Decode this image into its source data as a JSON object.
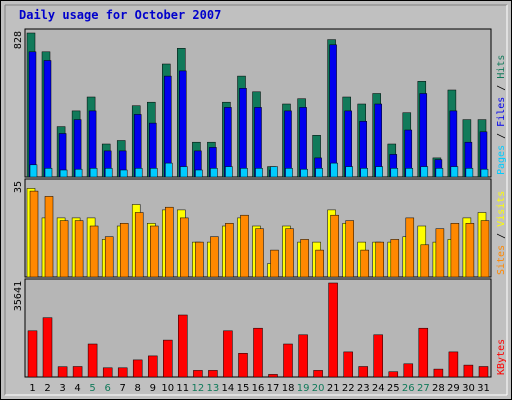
{
  "title": "Daily usage for October 2007",
  "colors": {
    "background": "#c0c0c0",
    "panel": "#b6b6b6",
    "hits": "#117a5a",
    "files": "#0000ee",
    "pages": "#00ccff",
    "visits": "#ffff00",
    "sites": "#ff8800",
    "kbytes": "#ff0000",
    "weekend_day": "#117a5a",
    "weekday": "#000000"
  },
  "chart_data": [
    {
      "type": "bar",
      "ymax_label": "828",
      "legend": [
        "Pages",
        "Files",
        "Hits"
      ],
      "ylim": [
        0,
        828
      ],
      "categories": [
        "1",
        "2",
        "3",
        "4",
        "5",
        "6",
        "7",
        "8",
        "9",
        "10",
        "11",
        "12",
        "13",
        "14",
        "15",
        "16",
        "17",
        "18",
        "19",
        "20",
        "21",
        "22",
        "23",
        "24",
        "25",
        "26",
        "27",
        "28",
        "29",
        "30",
        "31"
      ],
      "series": [
        {
          "name": "Hits",
          "values": [
            828,
            720,
            290,
            380,
            460,
            190,
            210,
            410,
            430,
            650,
            740,
            200,
            200,
            430,
            580,
            490,
            60,
            420,
            450,
            240,
            790,
            460,
            420,
            480,
            190,
            370,
            550,
            110,
            500,
            330,
            330
          ]
        },
        {
          "name": "Files",
          "values": [
            720,
            670,
            250,
            330,
            380,
            150,
            150,
            360,
            310,
            580,
            610,
            150,
            170,
            400,
            510,
            400,
            40,
            380,
            400,
            110,
            760,
            380,
            320,
            420,
            130,
            270,
            480,
            100,
            380,
            200,
            260
          ]
        },
        {
          "name": "Pages",
          "values": [
            70,
            50,
            40,
            45,
            50,
            50,
            40,
            50,
            50,
            80,
            60,
            40,
            50,
            60,
            50,
            50,
            60,
            50,
            45,
            50,
            80,
            60,
            50,
            60,
            50,
            50,
            60,
            50,
            60,
            50,
            45
          ]
        }
      ]
    },
    {
      "type": "bar",
      "ymax_label": "35",
      "legend": [
        "Sites",
        "Visits"
      ],
      "ylim": [
        0,
        35
      ],
      "categories": [
        "1",
        "2",
        "3",
        "4",
        "5",
        "6",
        "7",
        "8",
        "9",
        "10",
        "11",
        "12",
        "13",
        "14",
        "15",
        "16",
        "17",
        "18",
        "19",
        "20",
        "21",
        "22",
        "23",
        "24",
        "25",
        "26",
        "27",
        "28",
        "29",
        "30",
        "31"
      ],
      "series": [
        {
          "name": "Visits",
          "values": [
            33,
            22,
            22,
            22,
            22,
            14,
            19,
            27,
            20,
            25,
            25,
            13,
            13,
            19,
            22,
            19,
            5,
            19,
            13,
            13,
            25,
            20,
            13,
            13,
            13,
            15,
            19,
            13,
            14,
            22,
            24
          ]
        },
        {
          "name": "Sites",
          "values": [
            32,
            30,
            21,
            21,
            19,
            15,
            20,
            24,
            19,
            26,
            22,
            13,
            15,
            20,
            23,
            18,
            10,
            18,
            14,
            10,
            23,
            21,
            10,
            13,
            14,
            22,
            12,
            18,
            20,
            20,
            21
          ]
        }
      ]
    },
    {
      "type": "bar",
      "ymax_label": "35641",
      "legend": [
        "KBytes"
      ],
      "ylim": [
        0,
        35641
      ],
      "categories": [
        "1",
        "2",
        "3",
        "4",
        "5",
        "6",
        "7",
        "8",
        "9",
        "10",
        "11",
        "12",
        "13",
        "14",
        "15",
        "16",
        "17",
        "18",
        "19",
        "20",
        "21",
        "22",
        "23",
        "24",
        "25",
        "26",
        "27",
        "28",
        "29",
        "30",
        "31"
      ],
      "series": [
        {
          "name": "KBytes",
          "values": [
            17500,
            22500,
            3900,
            4000,
            12500,
            3500,
            3500,
            6500,
            8000,
            14000,
            23500,
            2500,
            2500,
            17500,
            9000,
            18500,
            1000,
            12500,
            16000,
            2500,
            35641,
            9500,
            4000,
            16000,
            2000,
            5000,
            18500,
            3000,
            9500,
            4500,
            4000
          ]
        }
      ]
    }
  ]
}
